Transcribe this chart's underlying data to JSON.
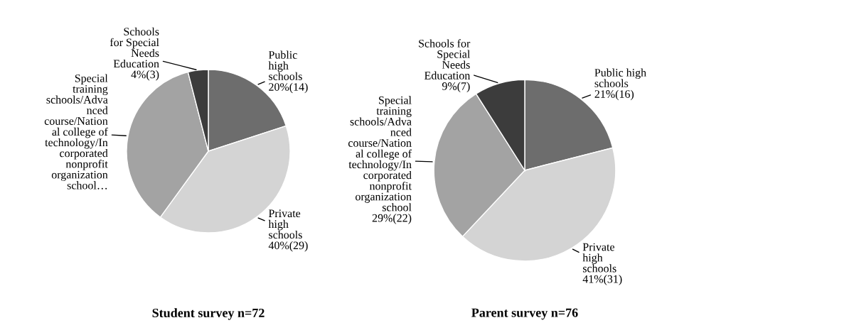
{
  "chart_data": [
    {
      "type": "pie",
      "title": "Student survey n=72",
      "categories": [
        "Public\nhigh\nschools",
        "Private\nhigh\nschools",
        "Special\ntraining\nschools/Adva\nnced\ncourse/Nation\nal college of\ntechnology/In\ncorporated\nnonprofit\norganization\nschool…",
        "Schools\nfor Special\nNeeds\nEducation"
      ],
      "values": [
        20,
        40,
        36,
        4
      ],
      "value_labels": [
        "20%(14)",
        "40%(29)",
        null,
        "4%(3)"
      ],
      "colors": [
        "#6d6d6d",
        "#d4d4d4",
        "#a3a3a3",
        "#3c3c3c"
      ]
    },
    {
      "type": "pie",
      "title": "Parent survey n=76",
      "categories": [
        "Public high\nschools",
        "Private\nhigh\nschools",
        "Special\ntraining\nschools/Adva\nnced\ncourse/Nation\nal college of\ntechnology/In\ncorporated\nnonprofit\norganization\nschool",
        "Schools for\nSpecial\nNeeds\nEducation"
      ],
      "values": [
        21,
        41,
        29,
        9
      ],
      "value_labels": [
        "21%(16)",
        "41%(31)",
        "29%(22)",
        "9%(7)"
      ],
      "colors": [
        "#6d6d6d",
        "#d4d4d4",
        "#a3a3a3",
        "#3c3c3c"
      ]
    }
  ]
}
